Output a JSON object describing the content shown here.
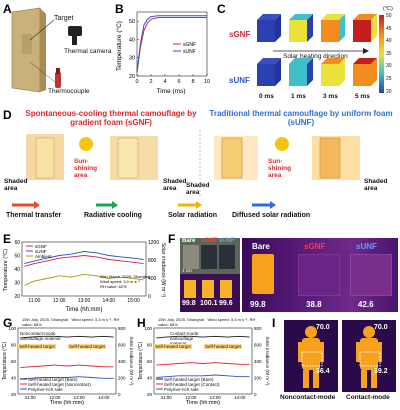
{
  "panels": {
    "A": {
      "label": "A",
      "target": "Target",
      "camera": "Thermal camera",
      "couple": "Thermocouple"
    },
    "B": {
      "label": "B",
      "ylabel": "Temperature (°C)",
      "xlabel": "Time (ms)",
      "yticks": [
        "20",
        "30",
        "40",
        "50"
      ],
      "xticks": [
        "0",
        "2",
        "4",
        "6",
        "8",
        "10"
      ],
      "legend": [
        "sGNF",
        "sUNF"
      ]
    },
    "C": {
      "label": "C",
      "row1": "sGNF",
      "row2": "sUNF",
      "arrow": "Solar heating direction",
      "times": [
        "0 ms",
        "1 ms",
        "3 ms",
        "5 ms"
      ],
      "cbar_unit": "(°C)",
      "cbar_ticks": [
        "50",
        "45",
        "40",
        "35",
        "30",
        "25",
        "20"
      ]
    },
    "D": {
      "label": "D",
      "title_left": "Spontaneous-cooling thermal camouflage by gradient foam (sGNF)",
      "title_right": "Traditional thermal camouflage by uniform foam (sUNF)",
      "shaded": "Shaded area",
      "sunshine": "Sun-shining area",
      "legend": [
        "Thermal transfer",
        "Radiative cooling",
        "Solar radiation",
        "Diffused solar radiation"
      ]
    },
    "E": {
      "label": "E",
      "ylabel": "Temperature (°C)",
      "y2label": "Solar irradiance (W m⁻²)",
      "xlabel": "Time (hh:mm)",
      "xticks": [
        "11:00",
        "12:00",
        "13:00",
        "14:00",
        "15:00"
      ],
      "yticks": [
        "20",
        "30",
        "40",
        "50",
        "60"
      ],
      "y2ticks": [
        "0",
        "400",
        "800",
        "1200"
      ],
      "legend": [
        "sGNF",
        "sUNF",
        "Ambient"
      ],
      "note": [
        "26th March, 2025, Shanghai",
        "Wind speed: 3.0 m s⁻¹",
        "RH value: 62%"
      ]
    },
    "F": {
      "label": "F",
      "bare": "Bare",
      "sgnf": "sGNF",
      "sunf": "sUNF",
      "temps_small": [
        "99.8",
        "100.1",
        "99.6"
      ],
      "temps_big": [
        "99.8",
        "38.8",
        "42.6"
      ],
      "scale": "1 cm"
    },
    "G": {
      "label": "G",
      "note": "15th July, 2025, Shanghai · Wind speed: 3.3 m s⁻¹, RH value: 86%",
      "ylabel": "Temperature (°C)",
      "y2label": "Solar irradiance (W m⁻²)",
      "xlabel": "Time (hh:mm)",
      "xticks": [
        "11:00",
        "12:00",
        "13:00",
        "14:00"
      ],
      "yticks": [
        "20",
        "40",
        "60",
        "80",
        "100"
      ],
      "y2ticks": [
        "0",
        "200",
        "400",
        "600",
        "800"
      ],
      "mode": "Noncontact-mode camouflage material",
      "target": "Self-heated target",
      "legend": [
        "Self-heated target (Bare)",
        "Self-heated target (Noncontact)",
        "Polymer-rich side"
      ]
    },
    "H": {
      "label": "H",
      "note": "15th July, 2025, Shanghai · Wind speed: 3.3 m s⁻¹, RH value: 86%",
      "ylabel": "Temperature (°C)",
      "y2label": "Solar irradiance (W m⁻²)",
      "xlabel": "Time (hh:mm)",
      "xticks": [
        "11:00",
        "12:00",
        "13:00",
        "14:00"
      ],
      "yticks": [
        "20",
        "40",
        "60",
        "80",
        "100"
      ],
      "y2ticks": [
        "0",
        "200",
        "400",
        "600",
        "800"
      ],
      "mode": "Contact-mode camouflage material",
      "target": "Self-heated target",
      "legend": [
        "Self-heated target (Bare)",
        "Self-heated target (Contact)",
        "Polymer-rich side"
      ]
    },
    "I": {
      "label": "I",
      "t1": "70.0",
      "t2": "36.4",
      "t3": "70.0",
      "t4": "39.2",
      "cap1": "Noncontact-mode",
      "cap2": "Contact-mode"
    }
  },
  "colors": {
    "sgnf": "#d6263a",
    "sunf": "#2b54c8",
    "ambient": "#a89a12",
    "accentRed": "#e0262b",
    "accentBlue": "#2e6fd0"
  },
  "chart_data": [
    {
      "type": "line",
      "panel": "B",
      "xlabel": "Time (ms)",
      "ylabel": "Temperature (°C)",
      "xlim": [
        0,
        10
      ],
      "ylim": [
        20,
        55
      ],
      "series": [
        {
          "name": "sGNF",
          "x": [
            0,
            0.5,
            1,
            1.5,
            2,
            3,
            4,
            6,
            8,
            10
          ],
          "y": [
            22,
            36,
            45,
            49,
            51,
            52,
            52,
            52,
            52,
            52
          ]
        },
        {
          "name": "sUNF",
          "x": [
            0,
            0.5,
            1,
            1.5,
            2,
            3,
            4,
            6,
            8,
            10
          ],
          "y": [
            22,
            38,
            48,
            51,
            52.5,
            53,
            53,
            53,
            53,
            53
          ]
        }
      ]
    },
    {
      "type": "line",
      "panel": "E",
      "xlabel": "Time (hh:mm)",
      "ylabel": "Temperature (°C)",
      "xlim": [
        10.5,
        15.5
      ],
      "ylim": [
        20,
        60
      ],
      "series": [
        {
          "name": "sGNF",
          "x": [
            10.6,
            11,
            11.5,
            12,
            12.5,
            13,
            13.5,
            14,
            14.5,
            15,
            15.4
          ],
          "y": [
            42,
            44,
            46,
            48,
            49,
            50,
            49,
            47,
            46,
            45,
            44
          ]
        },
        {
          "name": "sUNF",
          "x": [
            10.6,
            11,
            11.5,
            12,
            12.5,
            13,
            13.5,
            14,
            14.5,
            15,
            15.4
          ],
          "y": [
            44,
            46,
            48,
            50,
            51,
            53,
            52,
            50,
            49,
            48,
            47
          ]
        },
        {
          "name": "Ambient",
          "x": [
            10.6,
            11,
            11.5,
            12,
            12.5,
            13,
            13.5,
            14,
            14.5,
            15,
            15.4
          ],
          "y": [
            28,
            31,
            33,
            35,
            34,
            36,
            35,
            33,
            34,
            33,
            32
          ]
        }
      ]
    },
    {
      "type": "line",
      "panel": "G",
      "xlabel": "Time (hh:mm)",
      "ylabel": "Temperature (°C)",
      "xlim": [
        10.5,
        14.5
      ],
      "ylim": [
        20,
        100
      ],
      "series": [
        {
          "name": "Self-heated target (Bare)",
          "x": [
            10.6,
            11,
            11.5,
            12,
            12.5,
            13,
            13.5,
            14,
            14.4
          ],
          "y": [
            88,
            89,
            90,
            90,
            89,
            90,
            89,
            90,
            89
          ]
        },
        {
          "name": "Self-heated target (Noncontact)",
          "x": [
            10.6,
            11,
            11.5,
            12,
            12.5,
            13,
            13.5,
            14,
            14.4
          ],
          "y": [
            52,
            53,
            54,
            55,
            54,
            55,
            54,
            53,
            53
          ]
        },
        {
          "name": "Polymer-rich side",
          "x": [
            10.6,
            11,
            11.5,
            12,
            12.5,
            13,
            13.5,
            14,
            14.4
          ],
          "y": [
            38,
            39,
            40,
            40,
            40,
            41,
            40,
            39,
            39
          ]
        }
      ]
    },
    {
      "type": "line",
      "panel": "H",
      "xlabel": "Time (hh:mm)",
      "ylabel": "Temperature (°C)",
      "xlim": [
        10.5,
        14.5
      ],
      "ylim": [
        20,
        100
      ],
      "series": [
        {
          "name": "Self-heated target (Bare)",
          "x": [
            10.6,
            11,
            11.5,
            12,
            12.5,
            13,
            13.5,
            14,
            14.4
          ],
          "y": [
            88,
            89,
            90,
            90,
            89,
            90,
            89,
            90,
            89
          ]
        },
        {
          "name": "Self-heated target (Contact)",
          "x": [
            10.6,
            11,
            11.5,
            12,
            12.5,
            13,
            13.5,
            14,
            14.4
          ],
          "y": [
            55,
            56,
            57,
            58,
            57,
            58,
            57,
            56,
            56
          ]
        },
        {
          "name": "Polymer-rich side",
          "x": [
            10.6,
            11,
            11.5,
            12,
            12.5,
            13,
            13.5,
            14,
            14.4
          ],
          "y": [
            40,
            41,
            42,
            42,
            42,
            43,
            42,
            41,
            41
          ]
        }
      ]
    }
  ]
}
